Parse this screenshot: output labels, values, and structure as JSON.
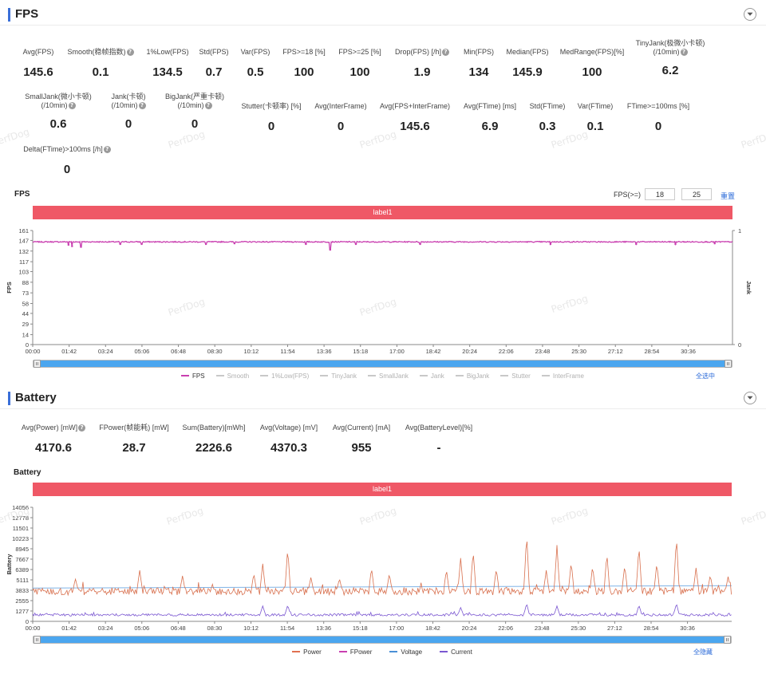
{
  "fps_section": {
    "title": "FPS",
    "metrics_row1": [
      {
        "label": "Avg(FPS)",
        "value": "145.6",
        "help": false
      },
      {
        "label": "Smooth(稳帧指数)",
        "value": "0.1",
        "help": true
      },
      {
        "label": "1%Low(FPS)",
        "value": "134.5",
        "help": false
      },
      {
        "label": "Std(FPS)",
        "value": "0.7",
        "help": false
      },
      {
        "label": "Var(FPS)",
        "value": "0.5",
        "help": false
      },
      {
        "label": "FPS>=18 [%]",
        "value": "100",
        "help": false
      },
      {
        "label": "FPS>=25 [%]",
        "value": "100",
        "help": false
      },
      {
        "label": "Drop(FPS) [/h]",
        "value": "1.9",
        "help": true
      },
      {
        "label": "Min(FPS)",
        "value": "134",
        "help": false
      },
      {
        "label": "Median(FPS)",
        "value": "145.9",
        "help": false
      },
      {
        "label": "MedRange(FPS)[%]",
        "value": "100",
        "help": false
      },
      {
        "label": "TinyJank(极微小卡顿)",
        "label2": "(/10min)",
        "value": "6.2",
        "help": true
      }
    ],
    "metrics_row2": [
      {
        "label": "SmallJank(微小卡顿)",
        "label2": "(/10min)",
        "value": "0.6",
        "help": true
      },
      {
        "label": "Jank(卡顿)",
        "label2": "(/10min)",
        "value": "0",
        "help": true
      },
      {
        "label": "BigJank(严重卡顿)",
        "label2": "(/10min)",
        "value": "0",
        "help": true
      },
      {
        "label": "Stutter(卡顿率) [%]",
        "value": "0",
        "help": false
      },
      {
        "label": "Avg(InterFrame)",
        "value": "0",
        "help": false
      },
      {
        "label": "Avg(FPS+InterFrame)",
        "value": "145.6",
        "help": false
      },
      {
        "label": "Avg(FTime) [ms]",
        "value": "6.9",
        "help": false
      },
      {
        "label": "Std(FTime)",
        "value": "0.3",
        "help": false
      },
      {
        "label": "Var(FTime)",
        "value": "0.1",
        "help": false
      },
      {
        "label": "FTime>=100ms [%]",
        "value": "0",
        "help": false
      }
    ],
    "metrics_row3": [
      {
        "label": "Delta(FTime)>100ms [/h]",
        "value": "0",
        "help": true
      }
    ]
  },
  "fps_chart": {
    "title": "FPS",
    "threshold_label": "FPS(>=)",
    "threshold_values": [
      "18",
      "25"
    ],
    "reset_label": "重置",
    "select_all_label": "全选中",
    "legend_colors": {
      "active": "#c93fb0",
      "inactive": "#c8c8c8"
    },
    "legend": [
      {
        "name": "FPS",
        "active": true
      },
      {
        "name": "Smooth",
        "active": false
      },
      {
        "name": "1%Low(FPS)",
        "active": false
      },
      {
        "name": "TinyJank",
        "active": false
      },
      {
        "name": "SmallJank",
        "active": false
      },
      {
        "name": "Jank",
        "active": false
      },
      {
        "name": "BigJank",
        "active": false
      },
      {
        "name": "Stutter",
        "active": false
      },
      {
        "name": "InterFrame",
        "active": false
      }
    ]
  },
  "battery_section": {
    "title": "Battery",
    "metrics": [
      {
        "label": "Avg(Power) [mW]",
        "value": "4170.6",
        "help": true
      },
      {
        "label": "FPower(帧能耗) [mW]",
        "value": "28.7",
        "help": false
      },
      {
        "label": "Sum(Battery)[mWh]",
        "value": "2226.6",
        "help": false
      },
      {
        "label": "Avg(Voltage) [mV]",
        "value": "4370.3",
        "help": false
      },
      {
        "label": "Avg(Current) [mA]",
        "value": "955",
        "help": false
      },
      {
        "label": "Avg(BatteryLevel)[%]",
        "value": "-",
        "help": false
      }
    ]
  },
  "battery_chart": {
    "title": "Battery",
    "select_all_label": "全隐藏",
    "legend": [
      {
        "name": "Power",
        "color": "#e07050"
      },
      {
        "name": "FPower",
        "color": "#c93fb0"
      },
      {
        "name": "Voltage",
        "color": "#4a90d6"
      },
      {
        "name": "Current",
        "color": "#7b57d1"
      }
    ]
  },
  "watermark_text": "PerfDog",
  "colors": {
    "label_bar": "#ef5866",
    "fps_line": "#c93fb0",
    "power_line": "#d8704e",
    "voltage_line": "#7fb3e6",
    "current_line": "#7b57d1",
    "slider": "#4ba6ef",
    "accent": "#3a6fd8",
    "link": "#2a6ad8"
  },
  "chart_data": [
    {
      "type": "line",
      "title": "FPS",
      "label": "label1",
      "xlabel": "",
      "ylabel": "FPS",
      "ylabel_right": "Jank",
      "ylim": [
        0,
        161
      ],
      "yticks": [
        0,
        14,
        29,
        44,
        58,
        73,
        88,
        103,
        117,
        132,
        147,
        161
      ],
      "yticks_right": [
        0,
        1
      ],
      "x_range_seconds": [
        0,
        1960
      ],
      "xticks": [
        "00:00",
        "01:42",
        "03:24",
        "05:06",
        "06:48",
        "08:30",
        "10:12",
        "11:54",
        "13:36",
        "15:18",
        "17:00",
        "18:42",
        "20:24",
        "22:06",
        "23:48",
        "25:30",
        "27:12",
        "28:54",
        "30:36"
      ],
      "series": [
        {
          "name": "FPS",
          "baseline": 145,
          "dips": [
            {
              "t": 100,
              "v": 141
            },
            {
              "t": 110,
              "v": 139
            },
            {
              "t": 135,
              "v": 138
            },
            {
              "t": 245,
              "v": 142
            },
            {
              "t": 305,
              "v": 142
            },
            {
              "t": 485,
              "v": 142
            },
            {
              "t": 565,
              "v": 143
            },
            {
              "t": 765,
              "v": 142
            },
            {
              "t": 833,
              "v": 134
            },
            {
              "t": 905,
              "v": 142
            },
            {
              "t": 1085,
              "v": 142
            },
            {
              "t": 1450,
              "v": 142
            },
            {
              "t": 1690,
              "v": 142
            },
            {
              "t": 1800,
              "v": 142
            },
            {
              "t": 1910,
              "v": 143
            }
          ]
        }
      ]
    },
    {
      "type": "line",
      "title": "Battery",
      "label": "label1",
      "xlabel": "",
      "ylabel": "Battery",
      "ylim": [
        0,
        14056
      ],
      "yticks": [
        0,
        1277,
        2555,
        3833,
        5111,
        6389,
        7667,
        8945,
        10223,
        11501,
        12778,
        14056
      ],
      "x_range_seconds": [
        0,
        1960
      ],
      "xticks": [
        "00:00",
        "01:42",
        "03:24",
        "05:06",
        "06:48",
        "08:30",
        "10:12",
        "11:54",
        "13:36",
        "15:18",
        "17:00",
        "18:42",
        "20:24",
        "22:06",
        "23:48",
        "25:30",
        "27:12",
        "28:54",
        "30:36"
      ],
      "series": [
        {
          "name": "Power",
          "baseline": 3700,
          "noise": 450,
          "spikes": [
            {
              "t": 120,
              "v": 5200
            },
            {
              "t": 300,
              "v": 6300
            },
            {
              "t": 420,
              "v": 5600
            },
            {
              "t": 620,
              "v": 5900
            },
            {
              "t": 645,
              "v": 7100
            },
            {
              "t": 715,
              "v": 9000
            },
            {
              "t": 780,
              "v": 5400
            },
            {
              "t": 860,
              "v": 5300
            },
            {
              "t": 950,
              "v": 6600
            },
            {
              "t": 1000,
              "v": 5900
            },
            {
              "t": 1160,
              "v": 6400
            },
            {
              "t": 1200,
              "v": 7800
            },
            {
              "t": 1235,
              "v": 8700
            },
            {
              "t": 1300,
              "v": 6500
            },
            {
              "t": 1385,
              "v": 10700
            },
            {
              "t": 1440,
              "v": 6300
            },
            {
              "t": 1470,
              "v": 9400
            },
            {
              "t": 1510,
              "v": 7300
            },
            {
              "t": 1570,
              "v": 6800
            },
            {
              "t": 1610,
              "v": 8400
            },
            {
              "t": 1660,
              "v": 6900
            },
            {
              "t": 1700,
              "v": 9300
            },
            {
              "t": 1750,
              "v": 7200
            },
            {
              "t": 1805,
              "v": 10400
            },
            {
              "t": 1860,
              "v": 6600
            },
            {
              "t": 1900,
              "v": 5700
            },
            {
              "t": 1950,
              "v": 5500
            }
          ]
        },
        {
          "name": "FPower",
          "values": []
        },
        {
          "name": "Voltage",
          "start": 4100,
          "end": 4400
        },
        {
          "name": "Current",
          "baseline": 800,
          "noise": 150,
          "spikes": [
            {
              "t": 645,
              "v": 1900
            },
            {
              "t": 715,
              "v": 2000
            },
            {
              "t": 1200,
              "v": 1700
            },
            {
              "t": 1385,
              "v": 2200
            },
            {
              "t": 1470,
              "v": 1900
            },
            {
              "t": 1700,
              "v": 2000
            },
            {
              "t": 1805,
              "v": 2200
            }
          ]
        }
      ]
    }
  ]
}
